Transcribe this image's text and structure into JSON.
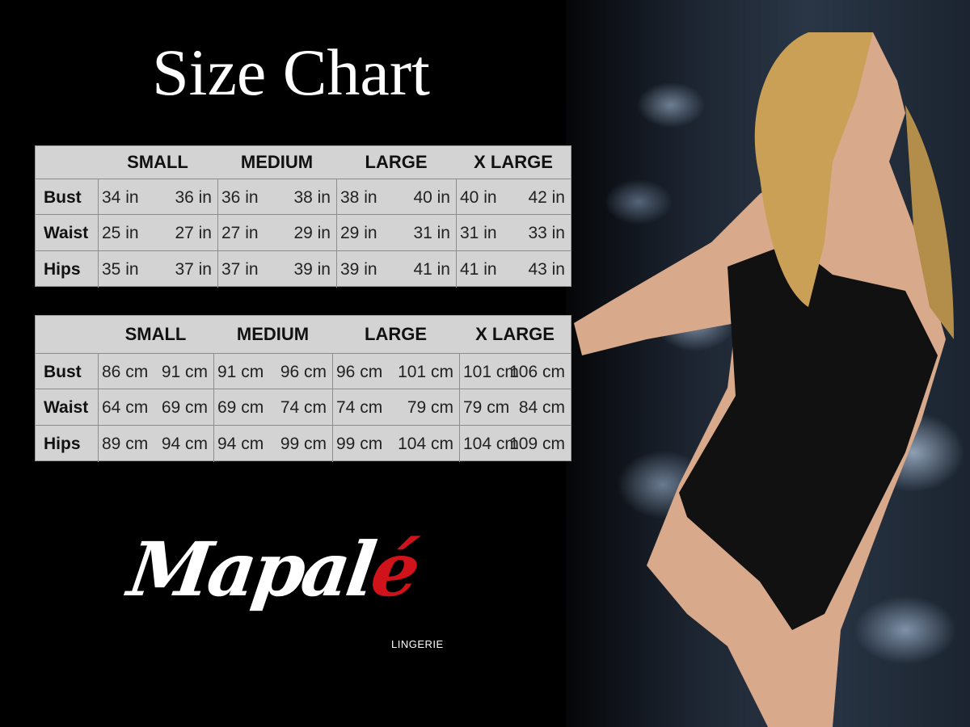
{
  "title": "Size Chart",
  "sizes": [
    "SMALL",
    "MEDIUM",
    "LARGE",
    "X LARGE"
  ],
  "inches_table": {
    "rows": [
      {
        "label": "Bust",
        "values": [
          "34 in",
          "36 in",
          "36 in",
          "38 in",
          "38 in",
          "40 in",
          "40 in",
          "42 in"
        ]
      },
      {
        "label": "Waist",
        "values": [
          "25 in",
          "27 in",
          "27 in",
          "29 in",
          "29 in",
          "31 in",
          "31 in",
          "33 in"
        ]
      },
      {
        "label": "Hips",
        "values": [
          "35 in",
          "37 in",
          "37 in",
          "39 in",
          "39 in",
          "41 in",
          "41 in",
          "43 in"
        ]
      }
    ]
  },
  "cm_table": {
    "rows": [
      {
        "label": "Bust",
        "values": [
          "86 cm",
          "91 cm",
          "91 cm",
          "96 cm",
          "96 cm",
          "101 cm",
          "101 cm",
          "106 cm"
        ]
      },
      {
        "label": "Waist",
        "values": [
          "64 cm",
          "69 cm",
          "69 cm",
          "74 cm",
          "74 cm",
          "79  cm",
          "79 cm",
          "84 cm"
        ]
      },
      {
        "label": "Hips",
        "values": [
          "89 cm",
          "94 cm",
          "94 cm",
          "99 cm",
          "99 cm",
          "104 cm",
          "104 cm",
          "109 cm"
        ]
      }
    ]
  },
  "logo": {
    "main": "Mapal",
    "accent": "é",
    "sub": "LINGERIE"
  },
  "colors": {
    "accent": "#d0121b",
    "table_bg": "#d3d3d3",
    "background": "#000000"
  }
}
